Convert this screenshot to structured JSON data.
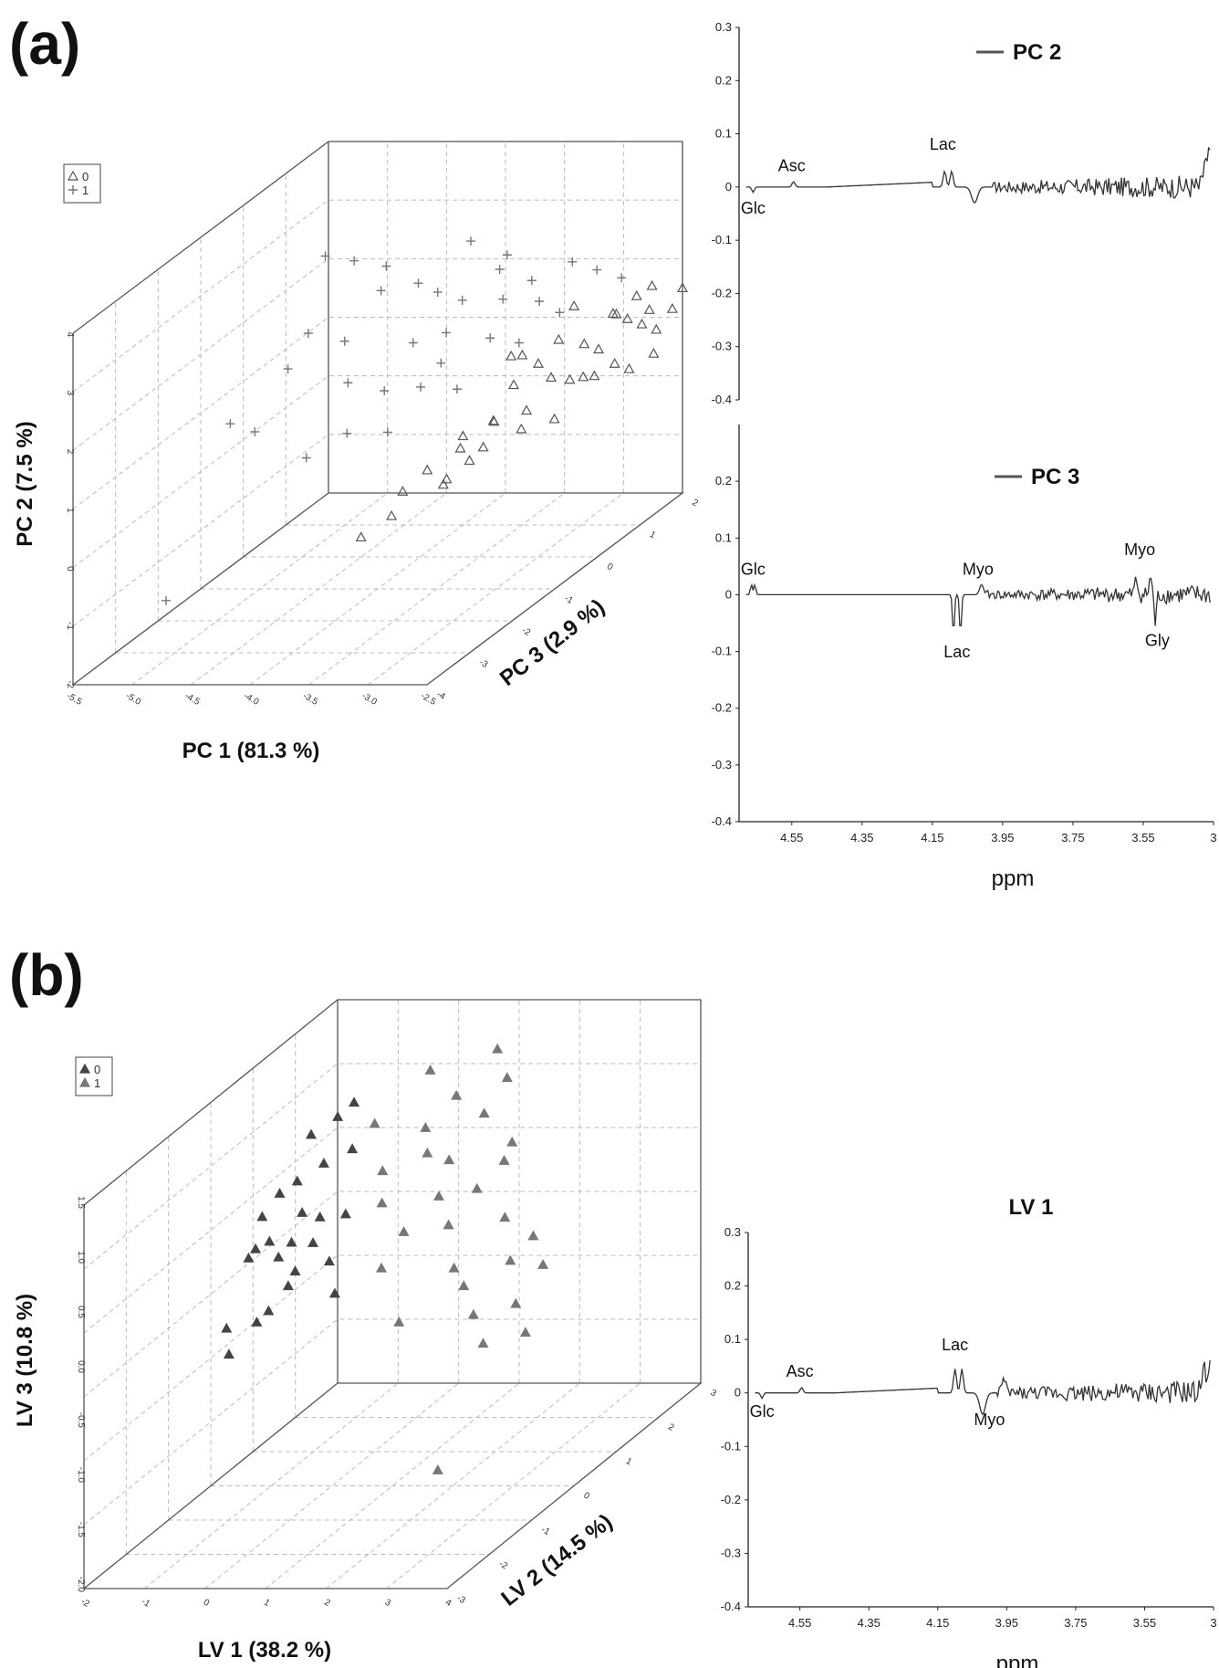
{
  "panels": {
    "a": "(a)",
    "b": "(b)"
  },
  "chart_data": [
    {
      "type": "scatter",
      "id": "pca-scores",
      "projection": "3d",
      "xlabel": "PC 1 (81.3 %)",
      "ylabel": "PC 2 (7.5 %)",
      "zlabel": "PC 3 (2.9 %)",
      "xlim": [
        -5.5,
        -2.5
      ],
      "ylim": [
        -2,
        4
      ],
      "zlim": [
        -4,
        2
      ],
      "xticks": [
        "-5.5",
        "-5.0",
        "-4.5",
        "-4.0",
        "-3.5",
        "-3.0",
        "-2.5"
      ],
      "yticks": [
        "-2",
        "-1",
        "0",
        "1",
        "2",
        "3",
        "4"
      ],
      "zticks": [
        "-4",
        "-3",
        "-2",
        "-1",
        "0",
        "1",
        "2"
      ],
      "grid": true,
      "legend_position": "top-left",
      "series": [
        {
          "name": "0",
          "marker": "triangle-open",
          "color": "#555555",
          "points": [
            [
              -3.2,
              0.6,
              -0.5
            ],
            [
              -3.1,
              0.5,
              0.0
            ],
            [
              -3.0,
              0.9,
              0.3
            ],
            [
              -2.95,
              0.7,
              0.6
            ],
            [
              -2.9,
              1.2,
              0.8
            ],
            [
              -2.85,
              1.0,
              1.0
            ],
            [
              -2.8,
              1.5,
              1.2
            ],
            [
              -2.8,
              0.8,
              0.5
            ],
            [
              -2.75,
              1.3,
              1.4
            ],
            [
              -2.7,
              1.1,
              1.6
            ],
            [
              -2.7,
              1.6,
              1.0
            ],
            [
              -2.65,
              0.9,
              1.8
            ],
            [
              -2.6,
              1.4,
              1.5
            ],
            [
              -2.6,
              1.8,
              1.2
            ],
            [
              -2.55,
              1.2,
              1.9
            ],
            [
              -3.3,
              0.4,
              -1.0
            ],
            [
              -3.4,
              0.3,
              -1.5
            ],
            [
              -3.35,
              0.5,
              -0.8
            ],
            [
              -3.25,
              0.2,
              -0.6
            ],
            [
              -3.5,
              0.1,
              -1.8
            ],
            [
              -3.45,
              -0.1,
              -2.2
            ],
            [
              -3.6,
              -0.3,
              -2.5
            ],
            [
              -3.0,
              1.3,
              0.0
            ],
            [
              -2.9,
              1.6,
              0.2
            ],
            [
              -3.1,
              1.1,
              -0.3
            ],
            [
              -3.05,
              0.8,
              -0.9
            ],
            [
              -2.95,
              1.9,
              0.7
            ],
            [
              -2.85,
              0.6,
              0.9
            ],
            [
              -2.75,
              0.7,
              1.1
            ],
            [
              -3.15,
              0.3,
              -1.2
            ],
            [
              -3.3,
              0.0,
              -1.4
            ],
            [
              -3.2,
              0.2,
              -1.6
            ],
            [
              -2.7,
              0.5,
              1.3
            ],
            [
              -2.65,
              1.7,
              1.7
            ],
            [
              -2.5,
              1.5,
              2.0
            ],
            [
              -2.6,
              0.6,
              1.6
            ],
            [
              -3.0,
              0.4,
              -0.4
            ],
            [
              -2.9,
              0.3,
              0.1
            ],
            [
              -3.1,
              1.5,
              -0.1
            ],
            [
              -3.05,
              1.7,
              -0.5
            ]
          ]
        },
        {
          "name": "1",
          "marker": "plus",
          "color": "#777777",
          "points": [
            [
              -4.2,
              3.6,
              -1.0
            ],
            [
              -4.0,
              3.4,
              -0.8
            ],
            [
              -4.3,
              2.8,
              -1.8
            ],
            [
              -4.1,
              2.5,
              -1.5
            ],
            [
              -3.8,
              3.0,
              -0.6
            ],
            [
              -3.9,
              3.2,
              -1.2
            ],
            [
              -3.6,
              2.9,
              -0.7
            ],
            [
              -3.7,
              2.2,
              -1.0
            ],
            [
              -3.5,
              2.6,
              -0.4
            ],
            [
              -3.6,
              2.1,
              -0.5
            ],
            [
              -3.3,
              2.4,
              0.0
            ],
            [
              -3.4,
              2.8,
              0.2
            ],
            [
              -3.2,
              2.5,
              0.4
            ],
            [
              -3.1,
              2.2,
              0.3
            ],
            [
              -3.0,
              2.6,
              0.8
            ],
            [
              -4.4,
              2.3,
              -2.0
            ],
            [
              -4.6,
              1.8,
              -2.8
            ],
            [
              -4.5,
              1.5,
              -2.5
            ],
            [
              -4.0,
              1.9,
              -1.7
            ],
            [
              -3.8,
              1.6,
              -1.4
            ],
            [
              -3.5,
              1.8,
              -0.9
            ],
            [
              -3.3,
              1.9,
              -0.3
            ],
            [
              -3.9,
              1.2,
              -2.0
            ],
            [
              -4.1,
              1.0,
              -2.4
            ],
            [
              -3.7,
              1.0,
              -1.6
            ],
            [
              -3.4,
              1.3,
              -0.8
            ],
            [
              -3.2,
              1.6,
              0.1
            ],
            [
              -3.6,
              1.5,
              -1.1
            ],
            [
              -3.0,
              1.9,
              0.5
            ],
            [
              -5.0,
              -1.0,
              -3.2
            ],
            [
              -3.5,
              3.5,
              -0.2
            ],
            [
              -3.3,
              3.1,
              0.1
            ],
            [
              -2.9,
              2.3,
              1.1
            ],
            [
              -2.8,
              2.0,
              1.4
            ],
            [
              -4.3,
              3.9,
              -1.4
            ]
          ]
        }
      ]
    },
    {
      "type": "line",
      "id": "pc2-loadings",
      "title": "",
      "xlabel": "",
      "ylabel": "",
      "series_name": "PC 2",
      "xlim": [
        4.7,
        3.35
      ],
      "ylim": [
        -0.4,
        0.3
      ],
      "yticks": [
        "0.3",
        "0.2",
        "0.1",
        "0",
        "-0.1",
        "-0.2",
        "-0.3",
        "-0.4"
      ],
      "legend_position": "top",
      "annotations": [
        {
          "text": "Asc",
          "x": 4.55,
          "y": 0.03
        },
        {
          "text": "Glc",
          "x": 4.66,
          "y": -0.05
        },
        {
          "text": "Lac",
          "x": 4.12,
          "y": 0.07
        }
      ]
    },
    {
      "type": "line",
      "id": "pc3-loadings",
      "xlabel": "ppm",
      "ylabel": "",
      "series_name": "PC 3",
      "xlim": [
        4.7,
        3.35
      ],
      "ylim": [
        -0.4,
        0.3
      ],
      "xticks": [
        "4.55",
        "4.35",
        "4.15",
        "3.95",
        "3.75",
        "3.55",
        "3"
      ],
      "yticks": [
        "0.2",
        "0.1",
        "0",
        "-0.1",
        "-0.2",
        "-0.3",
        "-0.4"
      ],
      "legend_position": "top",
      "annotations": [
        {
          "text": "Glc",
          "x": 4.66,
          "y": 0.035
        },
        {
          "text": "Myo",
          "x": 4.02,
          "y": 0.035
        },
        {
          "text": "Lac",
          "x": 4.08,
          "y": -0.11
        },
        {
          "text": "Myo",
          "x": 3.56,
          "y": 0.07
        },
        {
          "text": "Gly",
          "x": 3.51,
          "y": -0.09
        }
      ]
    },
    {
      "type": "scatter",
      "id": "pls-scores",
      "projection": "3d",
      "xlabel": "LV 1 (38.2 %)",
      "ylabel": "LV 3 (10.8 %)",
      "zlabel": "LV 2 (14.5 %)",
      "xlim": [
        -2,
        4
      ],
      "ylim": [
        -2.0,
        1.5
      ],
      "zlim": [
        -3,
        3
      ],
      "xticks": [
        "-2",
        "-1",
        "0",
        "1",
        "2",
        "3",
        "4"
      ],
      "yticks": [
        "-2.0",
        "-1.5",
        "-1.0",
        "-0.5",
        "0.0",
        "0.5",
        "1.0",
        "1.5"
      ],
      "zticks": [
        "-3",
        "-2",
        "-1",
        "0",
        "1",
        "2",
        "3"
      ],
      "grid": true,
      "legend_position": "top-left",
      "series": [
        {
          "name": "0",
          "marker": "triangle-filled",
          "color": "#444444",
          "points": [
            [
              -1.5,
              0.3,
              0.5
            ],
            [
              -1.4,
              0.1,
              0.2
            ],
            [
              -1.3,
              -0.1,
              0.6
            ],
            [
              -1.2,
              0.5,
              0.9
            ],
            [
              -1.1,
              0.2,
              0.1
            ],
            [
              -1.0,
              -0.3,
              0.4
            ],
            [
              -0.9,
              0.6,
              1.1
            ],
            [
              -0.8,
              0.0,
              0.7
            ],
            [
              -0.7,
              0.4,
              0.3
            ],
            [
              -0.6,
              -0.2,
              0.8
            ],
            [
              -1.6,
              -0.5,
              -0.2
            ],
            [
              -1.7,
              -0.8,
              0.0
            ],
            [
              -1.45,
              -0.6,
              0.3
            ],
            [
              -1.25,
              0.8,
              1.3
            ],
            [
              -0.95,
              0.9,
              1.5
            ],
            [
              -0.5,
              0.7,
              1.2
            ],
            [
              -0.4,
              0.2,
              0.9
            ],
            [
              -0.3,
              -0.4,
              0.5
            ],
            [
              -1.35,
              0.45,
              0.7
            ],
            [
              -1.05,
              0.05,
              0.55
            ],
            [
              -0.85,
              -0.15,
              0.35
            ],
            [
              -0.65,
              0.25,
              0.65
            ],
            [
              -1.55,
              0.0,
              0.25
            ],
            [
              -1.15,
              -0.45,
              0.15
            ],
            [
              -0.75,
              1.0,
              1.6
            ]
          ]
        },
        {
          "name": "1",
          "marker": "triangle-filled",
          "color": "#777777",
          "points": [
            [
              0.5,
              0.8,
              1.5
            ],
            [
              0.8,
              1.0,
              1.8
            ],
            [
              1.1,
              0.6,
              1.2
            ],
            [
              1.4,
              0.9,
              1.6
            ],
            [
              1.7,
              0.4,
              1.0
            ],
            [
              2.0,
              0.7,
              1.4
            ],
            [
              2.3,
              0.2,
              0.8
            ],
            [
              2.6,
              -0.1,
              0.5
            ],
            [
              2.9,
              -0.4,
              0.2
            ],
            [
              3.2,
              -0.6,
              0.0
            ],
            [
              0.2,
              0.3,
              0.9
            ],
            [
              0.0,
              0.5,
              1.2
            ],
            [
              0.4,
              -0.2,
              0.6
            ],
            [
              0.7,
              0.1,
              0.7
            ],
            [
              1.0,
              0.3,
              1.1
            ],
            [
              1.3,
              0.1,
              0.9
            ],
            [
              1.6,
              -0.2,
              0.6
            ],
            [
              1.9,
              -0.3,
              0.4
            ],
            [
              2.2,
              -0.5,
              0.2
            ],
            [
              2.5,
              -0.7,
              0.0
            ],
            [
              1.2,
              1.3,
              2.2
            ],
            [
              1.5,
              1.1,
              2.0
            ],
            [
              2.1,
              -1.7,
              -0.5
            ],
            [
              -0.2,
              0.9,
              1.3
            ],
            [
              0.3,
              1.2,
              1.9
            ],
            [
              2.7,
              0.0,
              0.9
            ],
            [
              3.0,
              -0.2,
              0.7
            ],
            [
              1.8,
              0.5,
              1.5
            ],
            [
              0.9,
              -0.6,
              0.3
            ],
            [
              0.6,
              0.6,
              1.4
            ]
          ]
        }
      ]
    },
    {
      "type": "line",
      "id": "lv1-loadings",
      "title": "LV 1",
      "xlabel": "ppm",
      "ylabel": "",
      "xlim": [
        4.7,
        3.35
      ],
      "ylim": [
        -0.4,
        0.3
      ],
      "xticks": [
        "4.55",
        "4.35",
        "4.15",
        "3.95",
        "3.75",
        "3.55",
        "3"
      ],
      "yticks": [
        "0.3",
        "0.2",
        "0.1",
        "0",
        "-0.1",
        "-0.2",
        "-0.3",
        "-0.4"
      ],
      "annotations": [
        {
          "text": "Asc",
          "x": 4.55,
          "y": 0.03
        },
        {
          "text": "Glc",
          "x": 4.66,
          "y": -0.045
        },
        {
          "text": "Lac",
          "x": 4.1,
          "y": 0.08
        },
        {
          "text": "Myo",
          "x": 4.0,
          "y": -0.06
        }
      ]
    }
  ]
}
